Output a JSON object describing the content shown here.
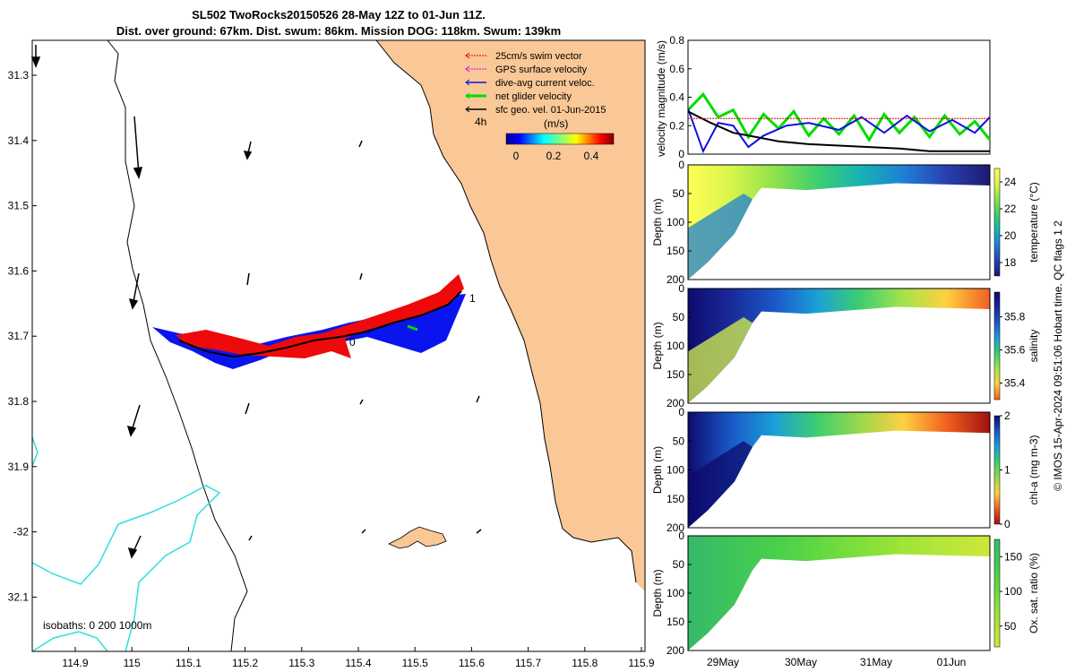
{
  "title": {
    "line1": "SL502 TwoRocks20150526 28-May 12Z to 01-Jun 11Z.",
    "line2": "Dist. over ground: 67km. Dist. swum: 86km. Mission DOG: 118km. Swum: 139km"
  },
  "map": {
    "lat_ticks": [
      "31.3",
      "31.4",
      "31.5",
      "31.6",
      "31.7",
      "31.8",
      "31.9",
      "-32",
      "32.1"
    ],
    "lon_ticks": [
      "114.9",
      "115",
      "115.1",
      "115.2",
      "115.3",
      "115.4",
      "115.5",
      "115.6",
      "115.7",
      "115.8",
      "115.9"
    ],
    "legend": [
      {
        "label": "25cm/s swim vector",
        "color": "#e00000"
      },
      {
        "label": "GPS surface velocity",
        "color": "#e000e0"
      },
      {
        "label": "dive-avg current veloc.",
        "color": "#1010e0"
      },
      {
        "label": "net glider velocity",
        "color": "#00dd00"
      },
      {
        "label": "sfc geo. vel. 01-Jun-2015",
        "color": "#000000"
      }
    ],
    "time_label": "4h",
    "colorbar_unit": "(m/s)",
    "colorbar_ticks": [
      "0",
      "0.2",
      "0.4"
    ],
    "isobath_label": "isobaths: 0   200  1000m",
    "track_labels": [
      "0",
      "1"
    ],
    "land_color": "#f9c896",
    "isobath_color": "#33dddd"
  },
  "chart_data": [
    {
      "type": "line",
      "title": "",
      "ylabel": "velocity magnitude (m/s)",
      "ylim": [
        0,
        0.8
      ],
      "yticks": [
        "0",
        "0.2",
        "0.4",
        "0.6",
        "0.8"
      ],
      "x_tick_labels": [
        "29May",
        "30May",
        "31May",
        "01Jun"
      ],
      "series": [
        {
          "name": "net glider velocity",
          "color": "#00dd00",
          "t": [
            0,
            0.2,
            0.4,
            0.6,
            0.8,
            1,
            1.2,
            1.4,
            1.6,
            1.8,
            2,
            2.2,
            2.4,
            2.6,
            2.8,
            3,
            3.2,
            3.4,
            3.6,
            3.8,
            4
          ],
          "values": [
            0.31,
            0.42,
            0.26,
            0.31,
            0.12,
            0.28,
            0.18,
            0.3,
            0.13,
            0.25,
            0.14,
            0.27,
            0.1,
            0.28,
            0.15,
            0.26,
            0.12,
            0.27,
            0.14,
            0.23,
            0.1
          ]
        },
        {
          "name": "dive-avg current veloc.",
          "color": "#1010e0",
          "t": [
            0,
            0.2,
            0.4,
            0.6,
            0.8,
            1,
            1.3,
            1.6,
            2,
            2.3,
            2.6,
            2.9,
            3.2,
            3.5,
            3.8,
            4
          ],
          "values": [
            0.32,
            0.02,
            0.22,
            0.2,
            0.05,
            0.13,
            0.2,
            0.22,
            0.17,
            0.26,
            0.15,
            0.27,
            0.16,
            0.24,
            0.15,
            0.26
          ]
        },
        {
          "name": "sfc geo. vel.",
          "color": "#000000",
          "t": [
            0,
            0.3,
            0.6,
            0.9,
            1.2,
            1.6,
            2,
            2.4,
            2.8,
            3.2,
            3.6,
            4
          ],
          "values": [
            0.3,
            0.22,
            0.15,
            0.12,
            0.09,
            0.07,
            0.06,
            0.05,
            0.04,
            0.02,
            0.02,
            0.02
          ]
        },
        {
          "name": "25cm/s swim vector",
          "color": "#e00000",
          "t": [
            0,
            4
          ],
          "values": [
            0.25,
            0.25
          ]
        }
      ]
    },
    {
      "type": "heatmap",
      "variable": "temperature",
      "ylabel": "Depth (m)",
      "ylim": [
        0,
        200
      ],
      "yticks": [
        "0",
        "50",
        "100",
        "150",
        "200"
      ],
      "colorbar_label": "temperature (°C)",
      "colorbar_ticks": [
        "18",
        "20",
        "22",
        "24"
      ],
      "range": [
        17,
        25
      ]
    },
    {
      "type": "heatmap",
      "variable": "salinity",
      "ylabel": "Depth (m)",
      "ylim": [
        0,
        200
      ],
      "yticks": [
        "0",
        "50",
        "100",
        "150",
        "200"
      ],
      "colorbar_label": "salinity",
      "colorbar_ticks": [
        "35.4",
        "35.6",
        "35.8"
      ],
      "range": [
        35.3,
        35.95
      ]
    },
    {
      "type": "heatmap",
      "variable": "chl-a",
      "ylabel": "Depth (m)",
      "ylim": [
        0,
        200
      ],
      "yticks": [
        "0",
        "50",
        "100",
        "150",
        "200"
      ],
      "colorbar_label": "chl-a (mg m-3)",
      "colorbar_ticks": [
        "0",
        "1",
        "2"
      ],
      "range": [
        0,
        2
      ]
    },
    {
      "type": "heatmap",
      "variable": "oxygen",
      "ylabel": "Depth (m)",
      "ylim": [
        0,
        200
      ],
      "yticks": [
        "0",
        "50",
        "100",
        "150",
        "200"
      ],
      "colorbar_label": "Ox. sat. ratio (%)",
      "colorbar_ticks": [
        "50",
        "100",
        "150"
      ],
      "range": [
        20,
        175
      ]
    }
  ],
  "footer": "© IMOS 15-Apr-2024 09:51:06 Hobart time. QC flags 1  2"
}
